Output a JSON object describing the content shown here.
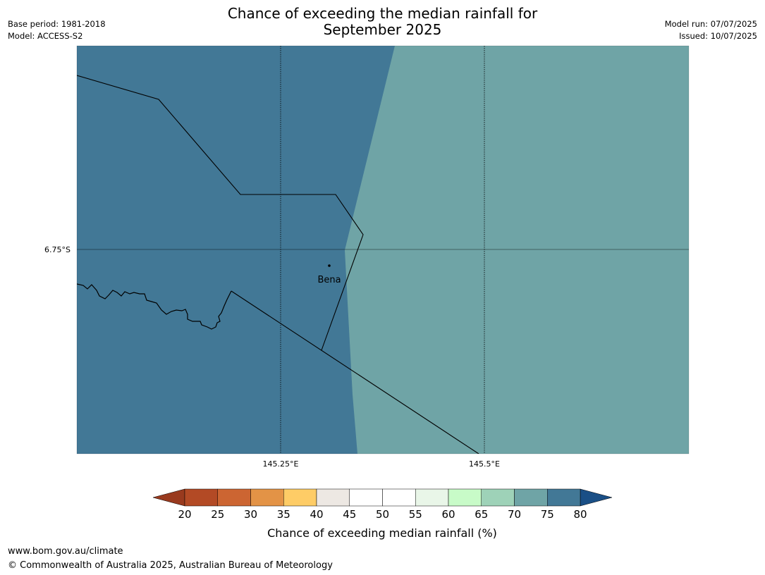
{
  "title_line1": "Chance of exceeding the median rainfall for",
  "title_line2": "September 2025",
  "meta_left": {
    "base_period": "Base period: 1981-2018",
    "model": "Model: ACCESS-S2"
  },
  "meta_right": {
    "model_run": "Model run: 07/07/2025",
    "issued": "Issued: 10/07/2025"
  },
  "map": {
    "lat_label": "6.75°S",
    "lon_labels": [
      "145.25°E",
      "145.5°E"
    ],
    "place": "Bena",
    "regions": [
      {
        "category": "75-80",
        "color": "#427896"
      },
      {
        "category": "70-75",
        "color": "#6fa4a6"
      }
    ]
  },
  "colorbar": {
    "label": "Chance of exceeding median rainfall (%)",
    "ticks": [
      "20",
      "25",
      "30",
      "35",
      "40",
      "45",
      "50",
      "55",
      "60",
      "65",
      "70",
      "75",
      "80"
    ],
    "under_color": "#993a1e",
    "over_color": "#1a4f86",
    "colors": [
      "#b34a25",
      "#cc6532",
      "#e39346",
      "#fecc66",
      "#ede8e3",
      "#ffffff",
      "#ffffff",
      "#e9f6e8",
      "#c8fbc8",
      "#9ed2b8",
      "#6fa4a6",
      "#427896"
    ]
  },
  "footer": {
    "url": "www.bom.gov.au/climate",
    "copyright": "© Commonwealth of Australia 2025, Australian Bureau of Meteorology"
  }
}
